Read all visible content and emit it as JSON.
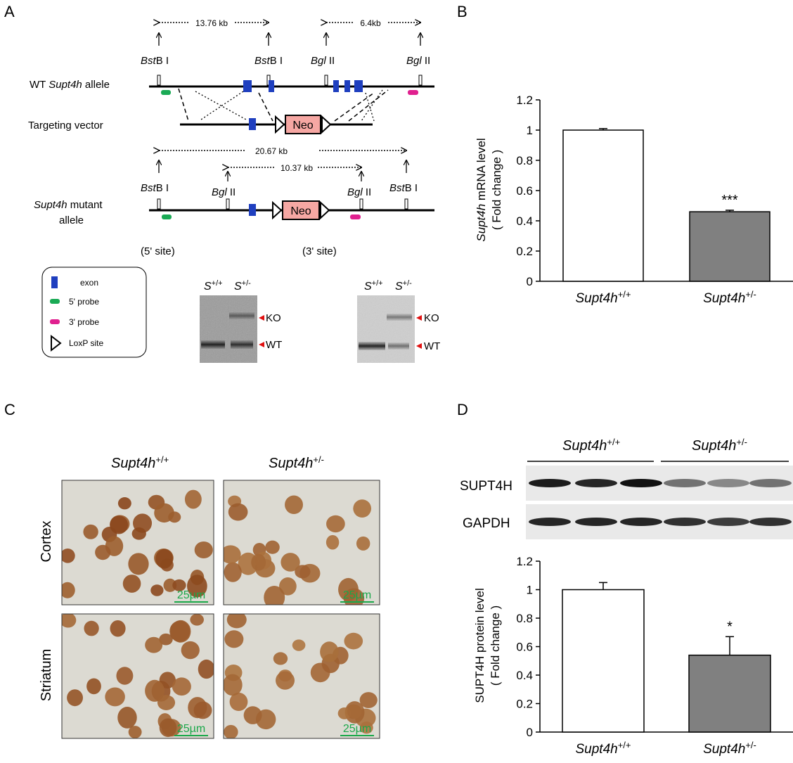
{
  "panels": {
    "a": "A",
    "b": "B",
    "c": "C",
    "d": "D"
  },
  "panel_a": {
    "map": {
      "dist_top_left": "13.76 kb",
      "dist_top_right": "6.4kb",
      "dist_mut_long": "20.67 kb",
      "dist_mut_inner": "10.37 kb",
      "enzyme_bst_italic": "Bst",
      "enzyme_bst_rest": "B I",
      "enzyme_bgl_italic": "Bgl",
      "enzyme_bgl_rest": " II",
      "wt_allele_prefix": "WT ",
      "wt_allele_gene": "Supt4h",
      "wt_allele_suffix": " allele",
      "targeting_vector": "Targeting  vector",
      "mutant_gene": "Supt4h",
      "mutant_suffix": " mutant",
      "mutant_line2": "allele",
      "neo": "Neo",
      "site_5": "(5' site)",
      "site_3": "(3' site)"
    },
    "legend": [
      "exon",
      "5' probe",
      "3' probe",
      "LoxP site"
    ],
    "blot": {
      "s": "S",
      "plus": "+/+",
      "het": "+/-",
      "ko": "KO",
      "wt": "WT"
    }
  },
  "chart_data": [
    {
      "type": "bar",
      "categories": [
        "Supt4h+/+",
        "Supt4h+/-"
      ],
      "values": [
        1.0,
        0.46
      ],
      "errors": [
        0.01,
        0.01
      ],
      "ylabel_italic": "Supt4h",
      "ylabel_rest": " mRNA level",
      "ylabel_line2": "( Fold change )",
      "ylim": [
        0,
        1.2
      ],
      "yticks": [
        "0",
        "0.2",
        "0.4",
        "0.6",
        "0.8",
        "1",
        "1.2"
      ],
      "significance": [
        "",
        "***"
      ],
      "colors": [
        "#ffffff",
        "#808080"
      ]
    },
    {
      "type": "bar",
      "categories": [
        "Supt4h+/+",
        "Supt4h+/-"
      ],
      "values": [
        1.0,
        0.54
      ],
      "errors": [
        0.05,
        0.13
      ],
      "ylabel": "SUPT4H protein level",
      "ylabel_line2": "( Fold change )",
      "ylim": [
        0,
        1.2
      ],
      "yticks": [
        "0",
        "0.2",
        "0.4",
        "0.6",
        "0.8",
        "1",
        "1.2"
      ],
      "significance": [
        "",
        "*"
      ],
      "colors": [
        "#ffffff",
        "#808080"
      ]
    }
  ],
  "genotype": {
    "gene": "Supt4h",
    "wt": "+/+",
    "het": "+/-"
  },
  "panel_c": {
    "rows": [
      "Cortex",
      "Striatum"
    ],
    "scale": "25µm"
  },
  "panel_d": {
    "bands": [
      "SUPT4H",
      "GAPDH"
    ]
  }
}
